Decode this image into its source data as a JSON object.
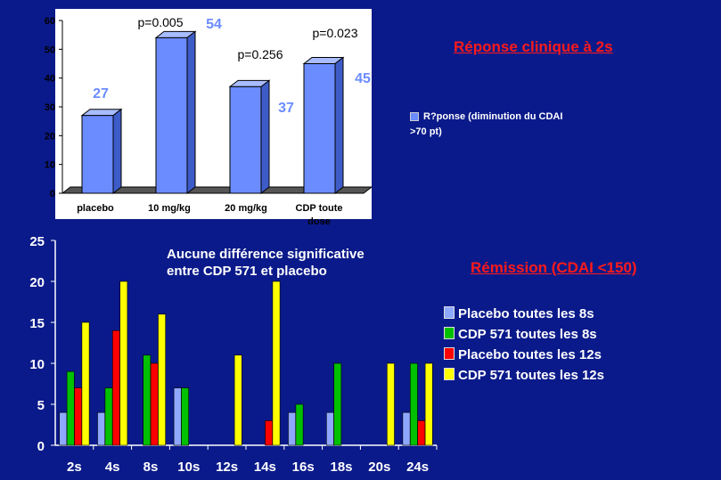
{
  "chart_data": [
    {
      "type": "bar",
      "title": "Réponse clinique à 2s",
      "categories": [
        "placebo",
        "10 mg/kg",
        "20 mg/kg",
        "CDP toute dose"
      ],
      "series": [
        {
          "name": "R?ponse (diminution du CDAI >70 pt)",
          "values": [
            27,
            54,
            37,
            45
          ]
        }
      ],
      "data_labels": [
        "27",
        "54",
        "37",
        "45"
      ],
      "p_values": [
        "p=0.005",
        "p=0.256",
        "p=0.023"
      ],
      "ylim": [
        0,
        60
      ],
      "yticks": [
        "0",
        "10",
        "20",
        "30",
        "40",
        "50",
        "60"
      ],
      "colors": {
        "bar": "#6b8cff"
      },
      "grid": false,
      "legend_position": "right"
    },
    {
      "type": "bar",
      "title": "Rémission (CDAI <150)",
      "annotation": [
        "Aucune différence significative",
        "entre CDP 571 et placebo"
      ],
      "categories": [
        "2s",
        "4s",
        "8s",
        "10s",
        "12s",
        "14s",
        "16s",
        "18s",
        "20s",
        "24s"
      ],
      "series": [
        {
          "name": "Placebo toutes les 8s",
          "color": "#8fa8ff",
          "values": [
            4,
            4,
            0,
            7,
            0,
            0,
            4,
            4,
            0,
            4
          ]
        },
        {
          "name": "CDP 571 toutes les 8s",
          "color": "#00c000",
          "values": [
            9,
            7,
            11,
            7,
            0,
            0,
            5,
            10,
            0,
            10
          ]
        },
        {
          "name": "Placebo toutes les 12s",
          "color": "#ff0000",
          "values": [
            7,
            14,
            10,
            0,
            0,
            3,
            0,
            0,
            0,
            3
          ]
        },
        {
          "name": "CDP 571 toutes les 12s",
          "color": "#ffff00",
          "values": [
            15,
            20,
            16,
            0,
            11,
            20,
            0,
            0,
            10,
            10
          ]
        }
      ],
      "ylim": [
        0,
        25
      ],
      "yticks": [
        "0",
        "5",
        "10",
        "15",
        "20",
        "25"
      ],
      "grid": false,
      "legend_position": "right"
    }
  ]
}
